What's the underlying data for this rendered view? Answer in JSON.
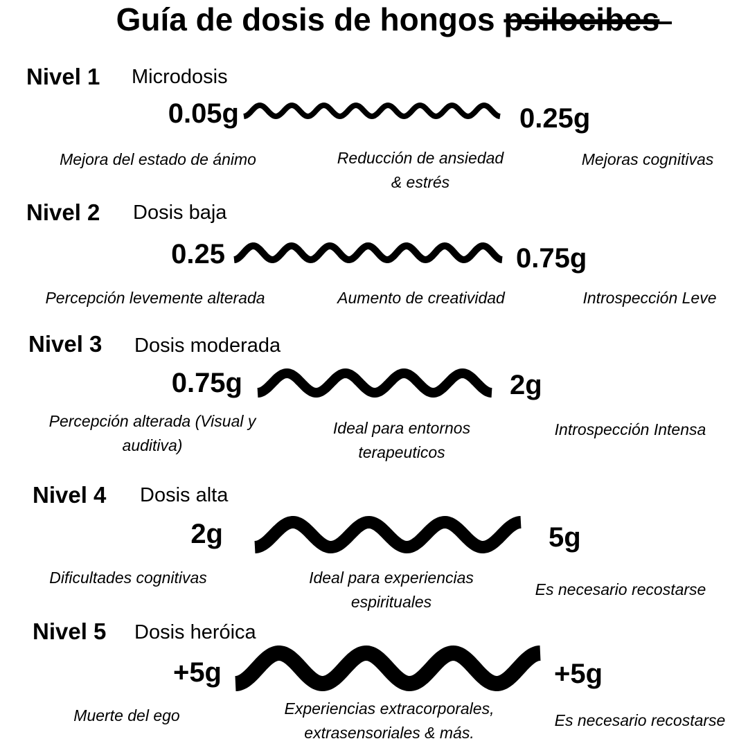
{
  "header": {
    "title": "Guía de dosis de hongos",
    "title_struck": "psilocibes"
  },
  "levels": [
    {
      "label": "Nivel 1",
      "name": "Microdosis",
      "min": "0.05g",
      "max": "0.25g",
      "effects": [
        [
          "Mejora del estado de ánimo"
        ],
        [
          "Reducción de ansiedad",
          "& estrés"
        ],
        [
          "Mejoras cognitivas"
        ]
      ]
    },
    {
      "label": "Nivel 2",
      "name": "Dosis baja",
      "min": "0.25",
      "max": "0.75g",
      "effects": [
        [
          "Percepción levemente alterada"
        ],
        [
          "Aumento de creatividad"
        ],
        [
          "Introspección Leve"
        ]
      ]
    },
    {
      "label": "Nivel 3",
      "name": "Dosis moderada",
      "min": "0.75g",
      "max": "2g",
      "effects": [
        [
          "Percepción alterada (Visual y",
          "auditiva)"
        ],
        [
          "Ideal para entornos",
          "terapeuticos"
        ],
        [
          "Introspección Intensa"
        ]
      ]
    },
    {
      "label": "Nivel 4",
      "name": "Dosis alta",
      "min": "2g",
      "max": "5g",
      "effects": [
        [
          "Dificultades cognitivas"
        ],
        [
          "Ideal para experiencias",
          "espirituales"
        ],
        [
          "Es necesario recostarse"
        ]
      ]
    },
    {
      "label": "Nivel 5",
      "name": "Dosis heróica",
      "min": "+5g",
      "max": "+5g",
      "effects": [
        [
          "Muerte del ego"
        ],
        [
          "Experiencias extracorporales,",
          "extrasensoriales & más."
        ],
        [
          "Es necesario recostarse"
        ]
      ]
    }
  ]
}
